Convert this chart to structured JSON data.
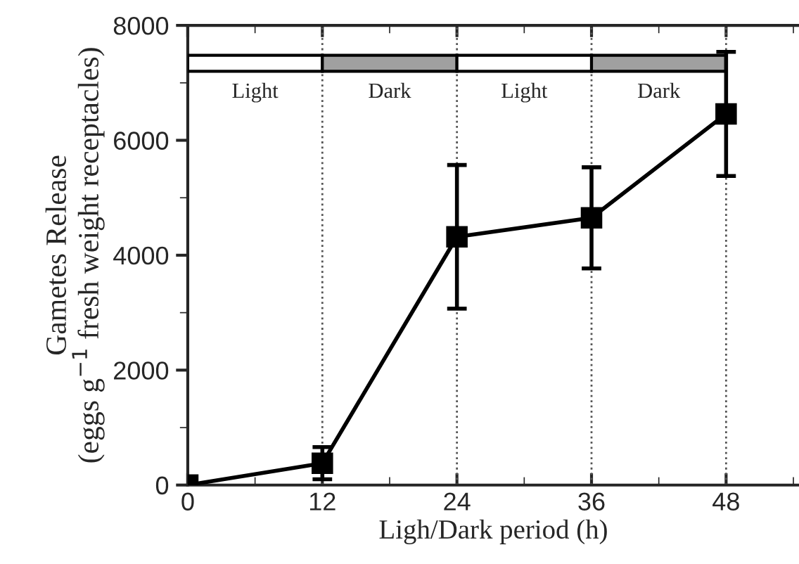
{
  "chart_data": {
    "type": "line",
    "xlabel": "Ligh/Dark period (h)",
    "ylabel": "Gametes Release\n(eggs g$^{−1}$ fresh weight receptacles)",
    "x": [
      0,
      12,
      24,
      36,
      48
    ],
    "series": [
      {
        "color": "#000000",
        "values": [
          0,
          380,
          4320,
          4650,
          6460
        ],
        "errors": [
          null,
          280,
          1250,
          880,
          1080
        ]
      }
    ],
    "marker": "square",
    "line_style": "solid",
    "xlim": [
      0,
      54.5
    ],
    "ylim": [
      0,
      8000
    ],
    "xticks": [
      0,
      12,
      24,
      36,
      48
    ],
    "yticks": [
      0,
      2000,
      4000,
      6000,
      8000
    ],
    "ref_lines": [
      {
        "axis": "x",
        "value": 12,
        "label": null,
        "line_style": "dotted",
        "color": "#555555"
      },
      {
        "axis": "x",
        "value": 24,
        "label": null,
        "line_style": "dotted",
        "color": "#555555"
      },
      {
        "axis": "x",
        "value": 36,
        "label": null,
        "line_style": "dotted",
        "color": "#555555"
      },
      {
        "axis": "x",
        "value": 48,
        "label": null,
        "line_style": "dotted",
        "color": "#555555"
      }
    ],
    "annotations": [
      "Light",
      "Dark",
      "Light",
      "Dark"
    ],
    "grid": false,
    "legend": false
  }
}
